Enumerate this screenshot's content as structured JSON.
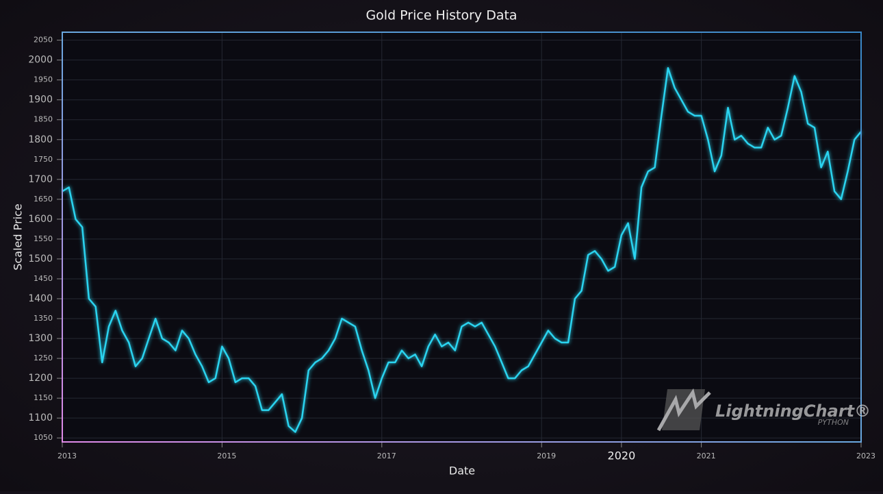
{
  "chart_data": {
    "type": "line",
    "title": "Gold Price History Data",
    "x_label": "Date",
    "y_label": "Scaled Price",
    "watermark": "LightningChart®",
    "watermark_sub": "PYTHON",
    "xlim": [
      2013,
      2023
    ],
    "xticks": [
      2013,
      2015,
      2017,
      2019,
      2020,
      2021,
      2023
    ],
    "ylim": [
      1040,
      2070
    ],
    "yticks": [
      1050,
      1100,
      1150,
      1200,
      1250,
      1300,
      1350,
      1400,
      1450,
      1500,
      1550,
      1600,
      1650,
      1700,
      1750,
      1800,
      1850,
      1900,
      1950,
      2000,
      2050
    ],
    "grid": true,
    "x": [
      2013,
      2013.083,
      2013.167,
      2013.25,
      2013.333,
      2013.417,
      2013.5,
      2013.583,
      2013.667,
      2013.75,
      2013.833,
      2013.917,
      2014,
      2014.083,
      2014.167,
      2014.25,
      2014.333,
      2014.417,
      2014.5,
      2014.583,
      2014.667,
      2014.75,
      2014.833,
      2014.917,
      2015,
      2015.083,
      2015.167,
      2015.25,
      2015.333,
      2015.417,
      2015.5,
      2015.583,
      2015.667,
      2015.75,
      2015.833,
      2015.917,
      2016,
      2016.083,
      2016.167,
      2016.25,
      2016.333,
      2016.417,
      2016.5,
      2016.583,
      2016.667,
      2016.75,
      2016.833,
      2016.917,
      2017,
      2017.083,
      2017.167,
      2017.25,
      2017.333,
      2017.417,
      2017.5,
      2017.583,
      2017.667,
      2017.75,
      2017.833,
      2017.917,
      2018,
      2018.083,
      2018.167,
      2018.25,
      2018.333,
      2018.417,
      2018.5,
      2018.583,
      2018.667,
      2018.75,
      2018.833,
      2018.917,
      2019,
      2019.083,
      2019.167,
      2019.25,
      2019.333,
      2019.417,
      2019.5,
      2019.583,
      2019.667,
      2019.75,
      2019.833,
      2019.917,
      2020,
      2020.083,
      2020.167,
      2020.25,
      2020.333,
      2020.417,
      2020.5,
      2020.583,
      2020.667,
      2020.75,
      2020.833,
      2020.917,
      2021,
      2021.083,
      2021.167,
      2021.25,
      2021.333,
      2021.417,
      2021.5,
      2021.583,
      2021.667,
      2021.75,
      2021.833,
      2021.917,
      2022,
      2022.083,
      2022.167,
      2022.25,
      2022.333,
      2022.417,
      2022.5,
      2022.583,
      2022.667,
      2022.75,
      2022.833,
      2022.917,
      2023
    ],
    "series": [
      {
        "name": "Gold Price",
        "color": "#2ad4f0",
        "values": [
          1670,
          1680,
          1600,
          1580,
          1400,
          1380,
          1240,
          1330,
          1370,
          1320,
          1290,
          1230,
          1250,
          1300,
          1350,
          1300,
          1290,
          1270,
          1320,
          1300,
          1260,
          1230,
          1190,
          1200,
          1280,
          1250,
          1190,
          1200,
          1200,
          1180,
          1120,
          1120,
          1140,
          1160,
          1080,
          1065,
          1100,
          1220,
          1240,
          1250,
          1270,
          1300,
          1350,
          1340,
          1330,
          1270,
          1220,
          1150,
          1200,
          1240,
          1240,
          1270,
          1250,
          1260,
          1230,
          1280,
          1310,
          1280,
          1290,
          1270,
          1330,
          1340,
          1330,
          1340,
          1310,
          1280,
          1240,
          1200,
          1200,
          1220,
          1230,
          1260,
          1290,
          1320,
          1300,
          1290,
          1290,
          1400,
          1420,
          1510,
          1520,
          1500,
          1470,
          1480,
          1560,
          1590,
          1500,
          1680,
          1720,
          1730,
          1860,
          1980,
          1930,
          1900,
          1870,
          1860,
          1860,
          1800,
          1720,
          1760,
          1880,
          1800,
          1810,
          1790,
          1780,
          1780,
          1830,
          1800,
          1810,
          1880,
          1960,
          1920,
          1840,
          1830,
          1730,
          1770,
          1670,
          1650,
          1720,
          1800,
          1820
        ]
      }
    ]
  }
}
